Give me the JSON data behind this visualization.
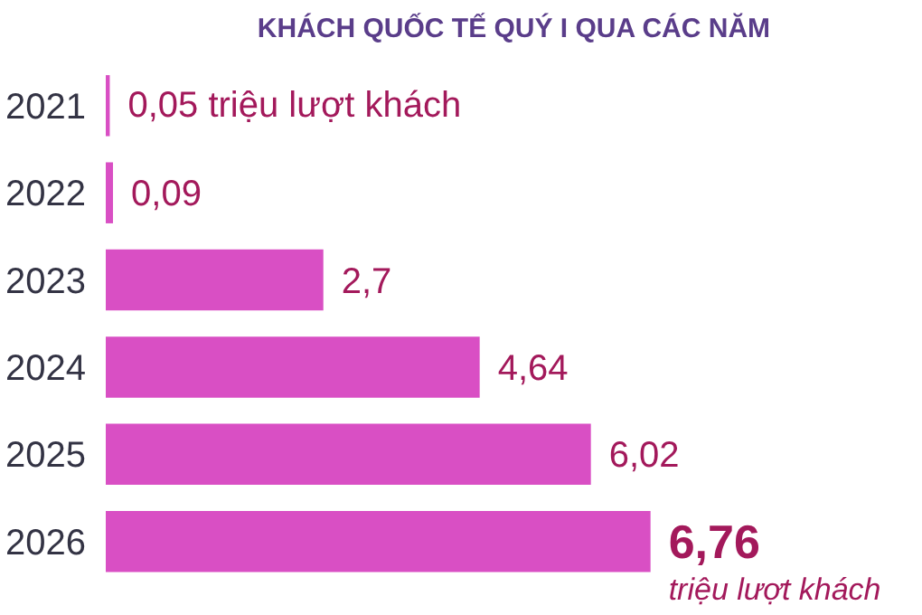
{
  "chart_data": {
    "type": "bar",
    "orientation": "horizontal",
    "title": "KHÁCH QUỐC TẾ QUÝ I QUA CÁC NĂM",
    "categories": [
      "2021",
      "2022",
      "2023",
      "2024",
      "2025",
      "2026"
    ],
    "values": [
      0.05,
      0.09,
      2.7,
      4.64,
      6.02,
      6.76
    ],
    "color": "#d94fc4",
    "value_labels": [
      "0,05 triệu lượt khách",
      "0,09",
      "2,7",
      "4,64",
      "6,02",
      "6,76"
    ],
    "annotations": [
      {
        "text": "triệu lượt khách",
        "x": 6.76,
        "y": "2026"
      }
    ],
    "grid": false
  }
}
